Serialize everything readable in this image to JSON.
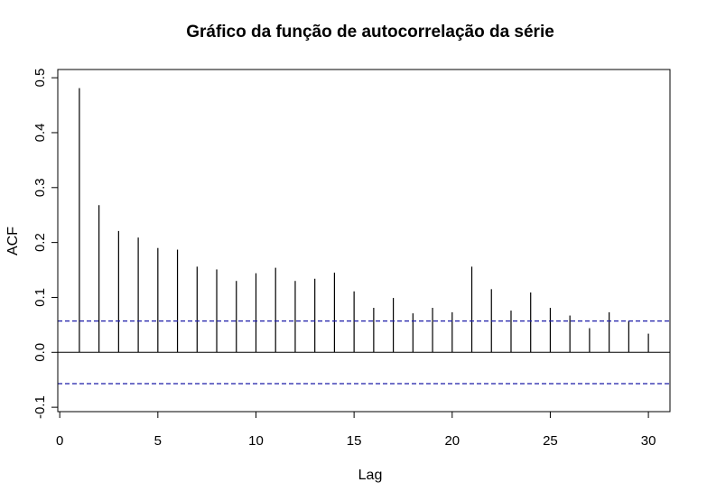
{
  "chart_data": {
    "type": "bar",
    "title": "Gráfico da função de autocorrelação da série",
    "xlabel": "Lag",
    "ylabel": "ACF",
    "xlim": [
      -0.1,
      31.1
    ],
    "ylim": [
      -0.108,
      0.515
    ],
    "xticks": [
      "0",
      "5",
      "10",
      "15",
      "20",
      "25",
      "30"
    ],
    "yticks": [
      "-0.1",
      "0.0",
      "0.1",
      "0.2",
      "0.3",
      "0.4",
      "0.5"
    ],
    "lags": [
      1,
      2,
      3,
      4,
      5,
      6,
      7,
      8,
      9,
      10,
      11,
      12,
      13,
      14,
      15,
      16,
      17,
      18,
      19,
      20,
      21,
      22,
      23,
      24,
      25,
      26,
      27,
      28,
      29,
      30
    ],
    "values": [
      0.481,
      0.268,
      0.221,
      0.209,
      0.19,
      0.187,
      0.156,
      0.151,
      0.13,
      0.144,
      0.154,
      0.13,
      0.134,
      0.145,
      0.111,
      0.081,
      0.099,
      0.071,
      0.081,
      0.073,
      0.156,
      0.115,
      0.076,
      0.109,
      0.081,
      0.067,
      0.044,
      0.073,
      0.057,
      0.034
    ],
    "confidence_bound": 0.057,
    "grid": false,
    "colors": {
      "bars": "#000000",
      "zero_line": "#000000",
      "confidence": "#1c1ca8"
    }
  }
}
